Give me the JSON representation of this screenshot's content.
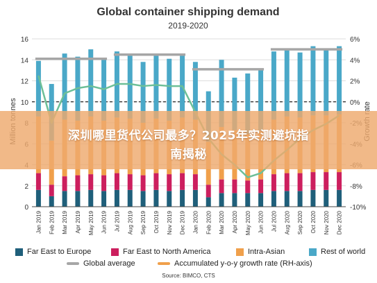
{
  "overlay": {
    "line1": "深圳哪里货代公司最多？2025年实测避坑指",
    "line2": "南揭秘"
  },
  "source": "Source: BIMCO, CTS",
  "colors": {
    "far_east_europe": "#1f5f7a",
    "far_east_na": "#cc1f5e",
    "intra_asian": "#f0a04b",
    "rest_of_world": "#4aa8c8",
    "global_average": "#a6a6a6",
    "growth_rate": "#6dbf97"
  },
  "chart_data": {
    "type": "bar",
    "subtype": "stacked bar with lines",
    "title": "Global container shipping demand",
    "subtitle": "2019-2020",
    "ylabel": "Million tonnes",
    "y2label": "Growth rate",
    "ylim": [
      0,
      16
    ],
    "y2lim": [
      -10,
      6
    ],
    "yticks": [
      "0",
      "2",
      "4",
      "6",
      "8",
      "10",
      "12",
      "14",
      "16"
    ],
    "y2ticks": [
      "-10%",
      "-8%",
      "-6%",
      "-4%",
      "-2%",
      "0%",
      "2%",
      "4%",
      "6%"
    ],
    "grid": true,
    "legend_position": "bottom",
    "categories": [
      "Jan 2019",
      "Feb 2019",
      "Mar 2019",
      "Apr 2019",
      "May 2019",
      "Jun 2019",
      "Jul 2019",
      "Aug 2019",
      "Sep 2019",
      "Oct 2019",
      "Nov 2019",
      "Dec 2019",
      "Jan 2020",
      "Feb 2020",
      "Mar 2020",
      "Apr 2020",
      "May 2020",
      "Jun 2020",
      "Jul 2020",
      "Aug 2020",
      "Sep 2020",
      "Oct 2020",
      "Nov 2020",
      "Dec 2020"
    ],
    "series": [
      {
        "name": "Far East to Europe",
        "values": [
          1.6,
          1.0,
          1.5,
          1.5,
          1.6,
          1.5,
          1.6,
          1.6,
          1.5,
          1.6,
          1.5,
          1.6,
          1.6,
          0.9,
          1.3,
          1.3,
          1.3,
          1.3,
          1.5,
          1.5,
          1.5,
          1.6,
          1.6,
          1.6
        ]
      },
      {
        "name": "Far East to North America",
        "values": [
          1.6,
          1.1,
          1.4,
          1.5,
          1.5,
          1.5,
          1.6,
          1.5,
          1.5,
          1.6,
          1.6,
          1.6,
          1.5,
          1.2,
          1.3,
          1.3,
          1.2,
          1.3,
          1.6,
          1.7,
          1.7,
          1.7,
          1.7,
          1.7
        ]
      },
      {
        "name": "Intra-Asian",
        "values": [
          5.4,
          4.2,
          5.4,
          5.2,
          5.5,
          5.2,
          5.3,
          5.3,
          5.0,
          5.2,
          5.1,
          5.3,
          5.2,
          4.1,
          5.0,
          4.7,
          4.4,
          4.6,
          5.2,
          5.4,
          5.3,
          5.4,
          5.4,
          5.5
        ]
      },
      {
        "name": "Rest of world",
        "values": [
          5.3,
          5.4,
          6.3,
          6.1,
          6.4,
          6.0,
          6.3,
          6.1,
          5.8,
          6.1,
          5.9,
          6.1,
          5.5,
          4.8,
          6.4,
          5.0,
          5.8,
          5.9,
          6.5,
          6.3,
          6.2,
          6.6,
          6.4,
          6.5
        ]
      }
    ],
    "global_average": {
      "name": "Global average",
      "segments": [
        {
          "from": 0,
          "to": 5,
          "value": 14.1
        },
        {
          "from": 6,
          "to": 11,
          "value": 14.5
        },
        {
          "from": 12,
          "to": 17,
          "value": 13.1
        },
        {
          "from": 18,
          "to": 23,
          "value": 15.0
        }
      ]
    },
    "growth_rate": {
      "name": "Accumulated y-o-y growth rate (RH-axis)",
      "values": [
        2.5,
        -2.0,
        0.8,
        1.3,
        1.5,
        1.2,
        1.7,
        1.7,
        1.5,
        1.6,
        1.5,
        1.5,
        -1.0,
        -3.5,
        -5.0,
        -6.0,
        -7.2,
        -6.8,
        -5.6,
        -4.6,
        -3.5,
        -2.7,
        -2.1,
        -1.3
      ]
    }
  },
  "legend": {
    "far_east_europe": "Far East to Europe",
    "far_east_na": "Far East to North America",
    "intra_asian": "Intra-Asian",
    "rest_of_world": "Rest of world",
    "global_average": "Global average",
    "growth_rate": "Accumulated y-o-y growth rate (RH-axis)"
  }
}
